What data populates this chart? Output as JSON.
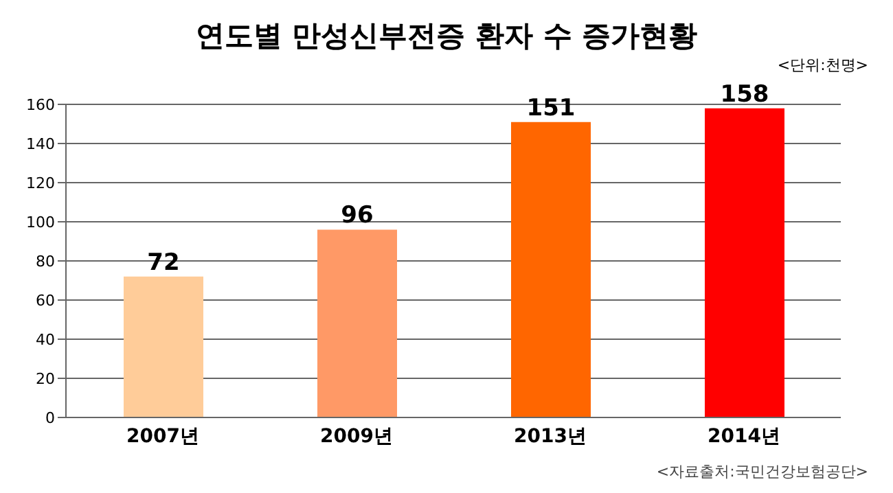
{
  "chart_data": {
    "type": "bar",
    "title": "연도별 만성신부전증 환자 수 증가현황",
    "categories": [
      "2007년",
      "2009년",
      "2013년",
      "2014년"
    ],
    "values": [
      72,
      96,
      151,
      158
    ],
    "colors": [
      "#ffcc99",
      "#ff9966",
      "#ff6600",
      "#ff0000"
    ],
    "ylim": [
      0,
      160
    ],
    "yticks": [
      0,
      20,
      40,
      60,
      80,
      100,
      120,
      140,
      160
    ],
    "grid": "y",
    "data_labels": true,
    "annotations": [
      "<단위:천명>",
      "<자료출처:국민건강보험공단>"
    ]
  }
}
